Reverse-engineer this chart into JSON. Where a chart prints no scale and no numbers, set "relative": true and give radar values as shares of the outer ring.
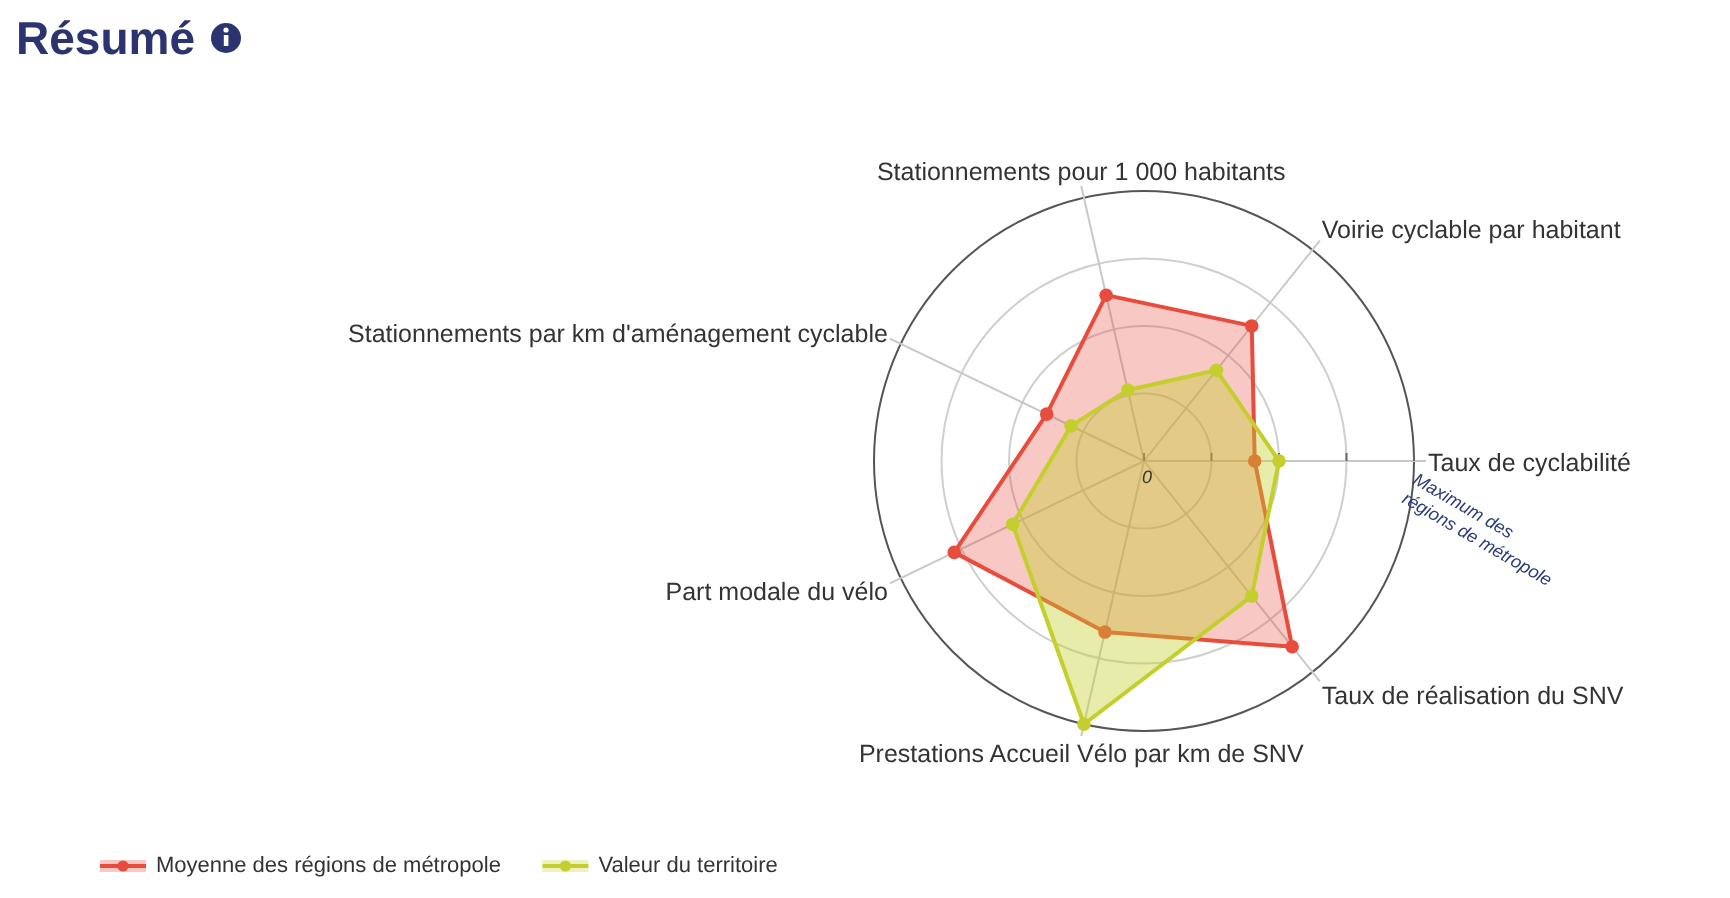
{
  "chart_data": {
    "type": "radar",
    "title": "Résumé",
    "categories": [
      "Stationnements pour 1 000 habitants",
      "Voirie cyclable par habitant",
      "Taux de cyclabilité",
      "Taux de réalisation du SNV",
      "Prestations Accueil Vélo par km de SNV",
      "Part modale du vélo",
      "Stationnements par km d'aménagement cyclable"
    ],
    "series": [
      {
        "name": "Moyenne des régions de métropole",
        "color": "#e84c3d",
        "values": [
          0.63,
          0.64,
          0.41,
          0.88,
          0.65,
          0.78,
          0.4
        ]
      },
      {
        "name": "Valeur du territoire",
        "color": "#c4cf2e",
        "values": [
          0.27,
          0.43,
          0.5,
          0.64,
          1.0,
          0.54,
          0.3
        ]
      }
    ],
    "relative": true,
    "grid": true,
    "legend": "bottom left",
    "marker": "circle",
    "annotations": [
      "0",
      "Maximum des\nrégions de métropole"
    ]
  }
}
